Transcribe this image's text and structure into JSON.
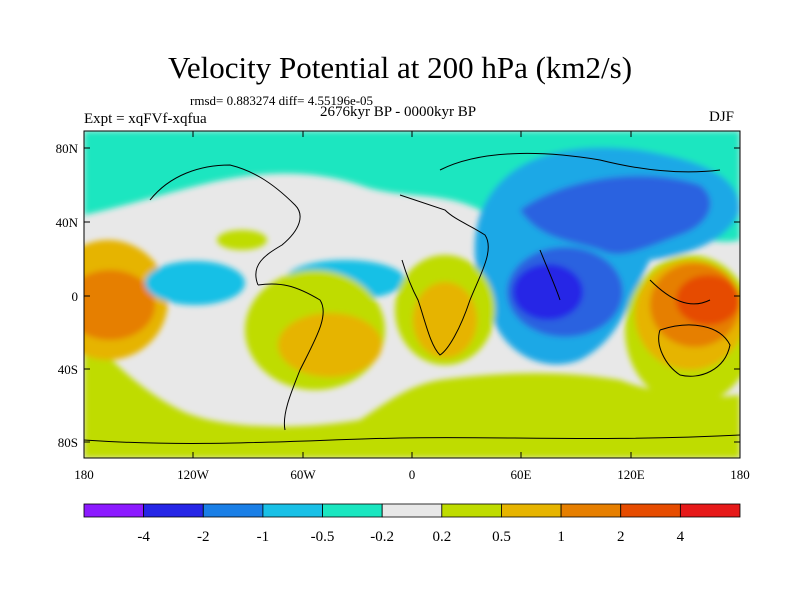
{
  "title": "Velocity Potential at 200 hPa (km2/s)",
  "stats_line": "rmsd= 0.883274 diff= 4.55196e-05",
  "left_label": "Expt = xqFVf-xqfua",
  "center_label": "2676kyr BP - 0000kyr BP",
  "right_label": "DJF",
  "lat_ticks": [
    "80N",
    "40N",
    "0",
    "40S",
    "80S"
  ],
  "lon_ticks": [
    "180",
    "120W",
    "60W",
    "0",
    "60E",
    "120E",
    "180"
  ],
  "colorbar": {
    "colors": [
      "#8c1aff",
      "#2626e6",
      "#1a7fe6",
      "#19c0e6",
      "#1ae6c0",
      "#e8e8e8",
      "#bfdc00",
      "#e6b400",
      "#e67f00",
      "#e64c00",
      "#e61919"
    ],
    "labels": [
      "-4",
      "-2",
      "-1",
      "-0.5",
      "-0.2",
      "0.2",
      "0.5",
      "1",
      "2",
      "4"
    ]
  }
}
